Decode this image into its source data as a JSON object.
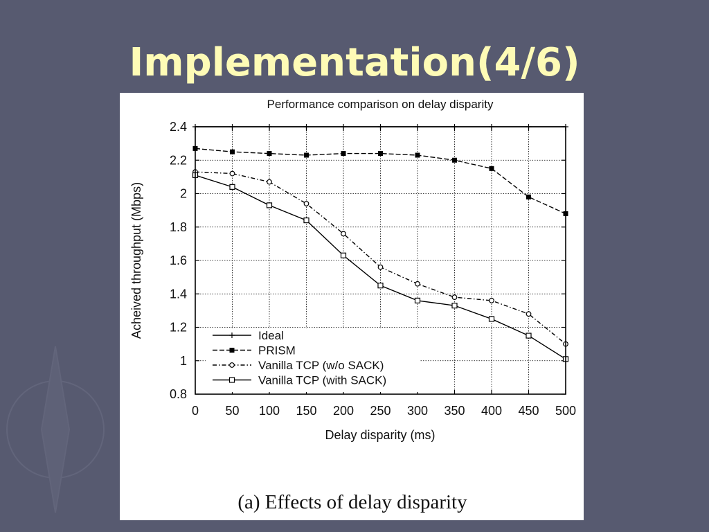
{
  "slide": {
    "title": "Implementation(4/6)",
    "caption": "(a) Effects of delay disparity",
    "background_color": "#575a70",
    "title_color": "#fefbb6"
  },
  "chart_data": {
    "type": "line",
    "title": "Performance comparison on delay disparity",
    "xlabel": "Delay disparity (ms)",
    "ylabel": "Acheived throughput (Mbps)",
    "x": [
      0,
      50,
      100,
      150,
      200,
      250,
      300,
      350,
      400,
      450,
      500
    ],
    "xlim": [
      0,
      500
    ],
    "ylim": [
      0.8,
      2.4
    ],
    "xticks": [
      "0",
      "50",
      "100",
      "150",
      "200",
      "250",
      "300",
      "350",
      "400",
      "450",
      "500"
    ],
    "yticks": [
      "0.8",
      "1",
      "1.2",
      "1.4",
      "1.6",
      "1.8",
      "2",
      "2.2",
      "2.4"
    ],
    "grid": true,
    "legend_position": "bottom-left",
    "series": [
      {
        "name": "Ideal",
        "style": "solid",
        "marker": "plus",
        "values": [
          2.4,
          2.4,
          2.4,
          2.4,
          2.4,
          2.4,
          2.4,
          2.4,
          2.4,
          2.4,
          2.4
        ]
      },
      {
        "name": "PRISM",
        "style": "dashed",
        "marker": "filled-square",
        "values": [
          2.27,
          2.25,
          2.24,
          2.23,
          2.24,
          2.24,
          2.23,
          2.2,
          2.15,
          1.98,
          1.88
        ]
      },
      {
        "name": "Vanilla TCP (w/o SACK)",
        "style": "dash-dot",
        "marker": "circle",
        "values": [
          2.13,
          2.12,
          2.07,
          1.94,
          1.76,
          1.56,
          1.46,
          1.38,
          1.36,
          1.28,
          1.1
        ]
      },
      {
        "name": "Vanilla TCP (with SACK)",
        "style": "solid",
        "marker": "open-square",
        "values": [
          2.11,
          2.04,
          1.93,
          1.84,
          1.63,
          1.45,
          1.36,
          1.33,
          1.25,
          1.15,
          1.01
        ]
      }
    ]
  }
}
